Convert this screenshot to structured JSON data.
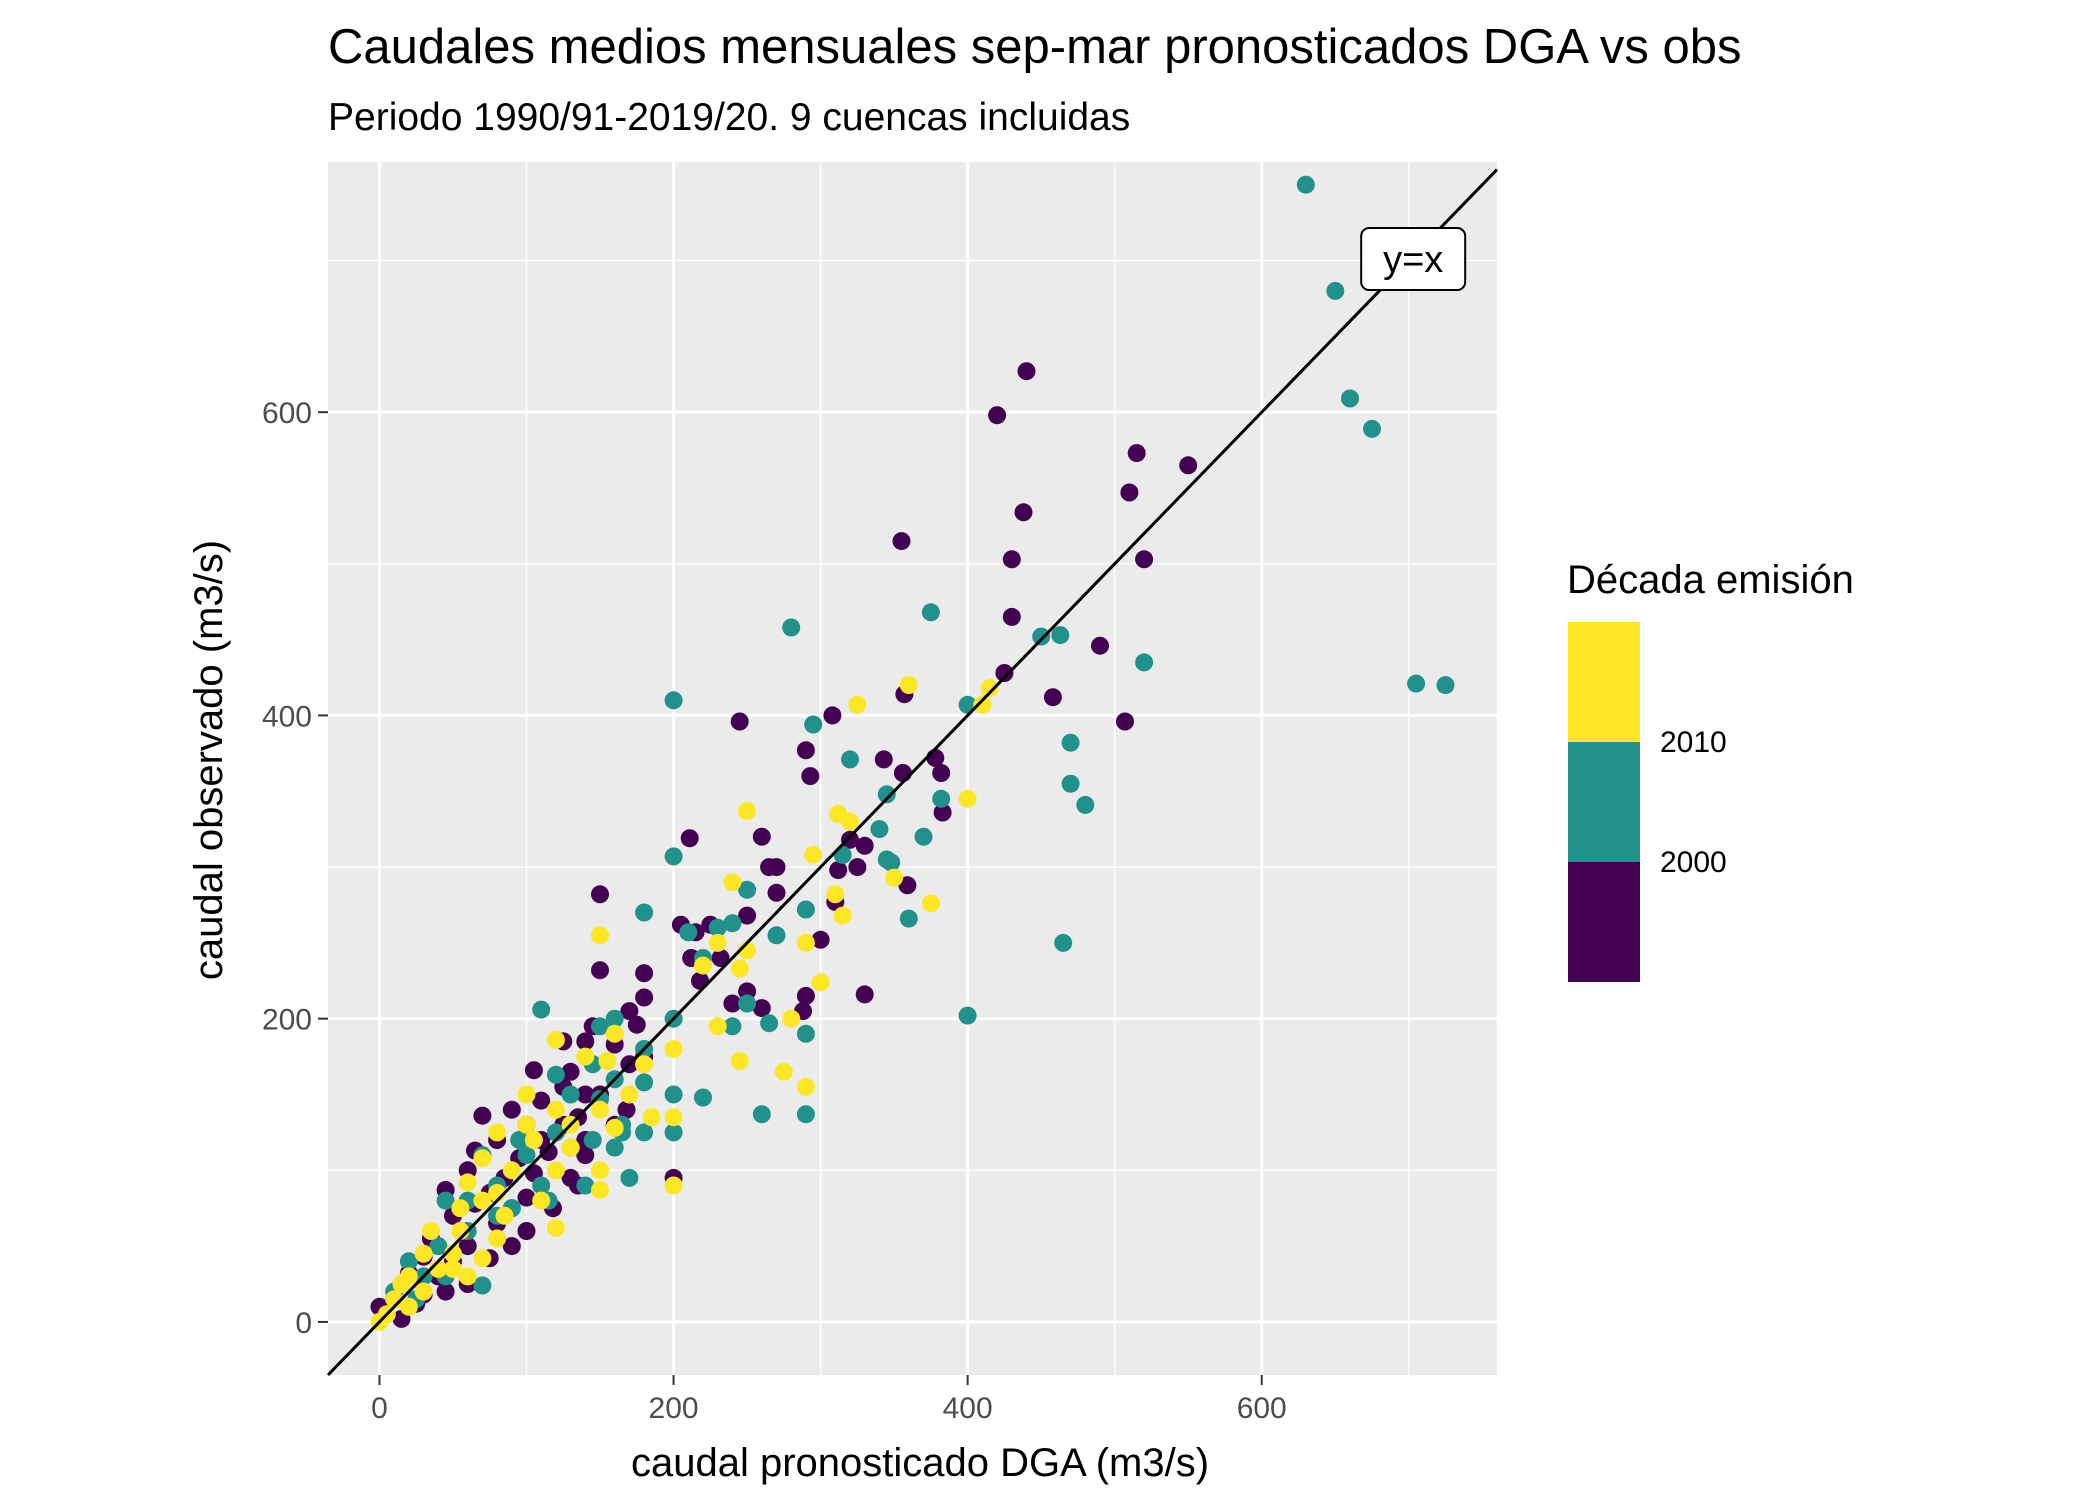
{
  "chart_data": {
    "type": "scatter",
    "title": "Caudales medios mensuales sep-mar pronosticados DGA vs obs",
    "subtitle": "Periodo 1990/91-2019/20. 9 cuencas incluidas",
    "xlabel": "caudal pronosticado DGA (m3/s)",
    "ylabel": "caudal observado (m3/s)",
    "xlim": [
      -35,
      760
    ],
    "ylim": [
      -35,
      765
    ],
    "xticks": [
      0,
      200,
      400,
      600
    ],
    "yticks": [
      0,
      200,
      400,
      600
    ],
    "grid": true,
    "reference_line": {
      "slope": 1,
      "intercept": 0,
      "label": "y=x",
      "label_at": [
        703,
        701
      ]
    },
    "legend": {
      "title": "Década emisión",
      "position": "right",
      "colorbar": [
        {
          "color": "#fde725"
        },
        {
          "color": "#21918c",
          "label": "2010"
        },
        {
          "color": "#440154",
          "label": "2000"
        }
      ]
    },
    "series": [
      {
        "color": "#440154",
        "points": [
          [
            440,
            627
          ],
          [
            420,
            598
          ],
          [
            515,
            573
          ],
          [
            550,
            565
          ],
          [
            510,
            547
          ],
          [
            438,
            534
          ],
          [
            355,
            515
          ],
          [
            520,
            503
          ],
          [
            430,
            503
          ],
          [
            430,
            465
          ],
          [
            490,
            446
          ],
          [
            425,
            428
          ],
          [
            458,
            412
          ],
          [
            507,
            396
          ],
          [
            357,
            414
          ],
          [
            245,
            396
          ],
          [
            308,
            400
          ],
          [
            290,
            377
          ],
          [
            378,
            372
          ],
          [
            343,
            371
          ],
          [
            293,
            360
          ],
          [
            382,
            362
          ],
          [
            356,
            362
          ],
          [
            383,
            336
          ],
          [
            260,
            320
          ],
          [
            211,
            319
          ],
          [
            320,
            318
          ],
          [
            330,
            314
          ],
          [
            312,
            298
          ],
          [
            265,
            300
          ],
          [
            270,
            300
          ],
          [
            325,
            300
          ],
          [
            270,
            283
          ],
          [
            359,
            288
          ],
          [
            310,
            277
          ],
          [
            150,
            282
          ],
          [
            205,
            262
          ],
          [
            225,
            262
          ],
          [
            250,
            268
          ],
          [
            215,
            257
          ],
          [
            300,
            252
          ],
          [
            212,
            240
          ],
          [
            232,
            240
          ],
          [
            218,
            225
          ],
          [
            150,
            232
          ],
          [
            180,
            230
          ],
          [
            250,
            218
          ],
          [
            290,
            215
          ],
          [
            330,
            216
          ],
          [
            288,
            205
          ],
          [
            180,
            214
          ],
          [
            170,
            205
          ],
          [
            240,
            210
          ],
          [
            260,
            207
          ],
          [
            125,
            185
          ],
          [
            140,
            185
          ],
          [
            160,
            183
          ],
          [
            175,
            196
          ],
          [
            145,
            195
          ],
          [
            105,
            166
          ],
          [
            130,
            165
          ],
          [
            170,
            170
          ],
          [
            180,
            175
          ],
          [
            125,
            155
          ],
          [
            140,
            150
          ],
          [
            110,
            146
          ],
          [
            150,
            150
          ],
          [
            168,
            140
          ],
          [
            70,
            136
          ],
          [
            90,
            140
          ],
          [
            100,
            130
          ],
          [
            125,
            130
          ],
          [
            135,
            135
          ],
          [
            80,
            120
          ],
          [
            110,
            120
          ],
          [
            140,
            120
          ],
          [
            160,
            130
          ],
          [
            65,
            113
          ],
          [
            95,
            108
          ],
          [
            115,
            112
          ],
          [
            140,
            110
          ],
          [
            60,
            100
          ],
          [
            85,
            95
          ],
          [
            105,
            98
          ],
          [
            130,
            95
          ],
          [
            75,
            85
          ],
          [
            100,
            82
          ],
          [
            135,
            90
          ],
          [
            200,
            95
          ],
          [
            45,
            87
          ],
          [
            65,
            78
          ],
          [
            90,
            75
          ],
          [
            118,
            75
          ],
          [
            50,
            70
          ],
          [
            80,
            65
          ],
          [
            100,
            60
          ],
          [
            35,
            55
          ],
          [
            60,
            50
          ],
          [
            90,
            50
          ],
          [
            30,
            43
          ],
          [
            50,
            40
          ],
          [
            75,
            42
          ],
          [
            20,
            32
          ],
          [
            40,
            30
          ],
          [
            60,
            25
          ],
          [
            10,
            15
          ],
          [
            25,
            12
          ],
          [
            45,
            20
          ],
          [
            0,
            10
          ],
          [
            15,
            2
          ],
          [
            30,
            18
          ],
          [
            5,
            5
          ]
        ]
      },
      {
        "color": "#21918c",
        "points": [
          [
            630,
            750
          ],
          [
            650,
            680
          ],
          [
            660,
            609
          ],
          [
            675,
            589
          ],
          [
            705,
            421
          ],
          [
            725,
            420
          ],
          [
            375,
            468
          ],
          [
            280,
            458
          ],
          [
            450,
            452
          ],
          [
            463,
            453
          ],
          [
            520,
            435
          ],
          [
            200,
            410
          ],
          [
            400,
            407
          ],
          [
            295,
            394
          ],
          [
            320,
            371
          ],
          [
            470,
            382
          ],
          [
            345,
            348
          ],
          [
            382,
            345
          ],
          [
            470,
            355
          ],
          [
            480,
            341
          ],
          [
            340,
            325
          ],
          [
            370,
            320
          ],
          [
            315,
            308
          ],
          [
            345,
            305
          ],
          [
            348,
            303
          ],
          [
            200,
            307
          ],
          [
            250,
            285
          ],
          [
            230,
            260
          ],
          [
            240,
            263
          ],
          [
            290,
            272
          ],
          [
            360,
            266
          ],
          [
            180,
            270
          ],
          [
            210,
            257
          ],
          [
            270,
            255
          ],
          [
            220,
            240
          ],
          [
            110,
            206
          ],
          [
            250,
            210
          ],
          [
            400,
            202
          ],
          [
            200,
            200
          ],
          [
            465,
            250
          ],
          [
            265,
            197
          ],
          [
            240,
            195
          ],
          [
            160,
            200
          ],
          [
            150,
            195
          ],
          [
            290,
            190
          ],
          [
            180,
            180
          ],
          [
            145,
            170
          ],
          [
            120,
            163
          ],
          [
            130,
            150
          ],
          [
            160,
            160
          ],
          [
            180,
            158
          ],
          [
            220,
            148
          ],
          [
            260,
            137
          ],
          [
            290,
            137
          ],
          [
            150,
            147
          ],
          [
            200,
            150
          ],
          [
            200,
            125
          ],
          [
            165,
            130
          ],
          [
            95,
            120
          ],
          [
            120,
            125
          ],
          [
            145,
            120
          ],
          [
            165,
            125
          ],
          [
            180,
            125
          ],
          [
            70,
            110
          ],
          [
            100,
            110
          ],
          [
            130,
            115
          ],
          [
            160,
            115
          ],
          [
            80,
            90
          ],
          [
            110,
            90
          ],
          [
            140,
            90
          ],
          [
            170,
            95
          ],
          [
            90,
            75
          ],
          [
            115,
            80
          ],
          [
            60,
            80
          ],
          [
            80,
            70
          ],
          [
            45,
            80
          ],
          [
            60,
            60
          ],
          [
            70,
            24
          ],
          [
            40,
            50
          ],
          [
            45,
            30
          ],
          [
            20,
            40
          ],
          [
            30,
            30
          ],
          [
            10,
            20
          ],
          [
            25,
            15
          ],
          [
            5,
            5
          ]
        ]
      },
      {
        "color": "#fde725",
        "points": [
          [
            360,
            420
          ],
          [
            415,
            418
          ],
          [
            410,
            407
          ],
          [
            325,
            407
          ],
          [
            250,
            337
          ],
          [
            312,
            335
          ],
          [
            320,
            330
          ],
          [
            400,
            345
          ],
          [
            295,
            308
          ],
          [
            350,
            293
          ],
          [
            240,
            290
          ],
          [
            310,
            282
          ],
          [
            315,
            268
          ],
          [
            375,
            276
          ],
          [
            150,
            255
          ],
          [
            230,
            250
          ],
          [
            250,
            245
          ],
          [
            290,
            250
          ],
          [
            220,
            235
          ],
          [
            245,
            233
          ],
          [
            300,
            224
          ],
          [
            280,
            200
          ],
          [
            230,
            195
          ],
          [
            245,
            172
          ],
          [
            275,
            165
          ],
          [
            290,
            155
          ],
          [
            200,
            180
          ],
          [
            120,
            186
          ],
          [
            160,
            190
          ],
          [
            180,
            170
          ],
          [
            140,
            175
          ],
          [
            155,
            172
          ],
          [
            170,
            150
          ],
          [
            100,
            150
          ],
          [
            120,
            140
          ],
          [
            150,
            140
          ],
          [
            100,
            130
          ],
          [
            130,
            130
          ],
          [
            185,
            135
          ],
          [
            200,
            135
          ],
          [
            160,
            128
          ],
          [
            80,
            125
          ],
          [
            105,
            120
          ],
          [
            130,
            115
          ],
          [
            70,
            108
          ],
          [
            90,
            100
          ],
          [
            120,
            100
          ],
          [
            150,
            100
          ],
          [
            60,
            92
          ],
          [
            80,
            85
          ],
          [
            110,
            80
          ],
          [
            150,
            87
          ],
          [
            200,
            90
          ],
          [
            55,
            75
          ],
          [
            70,
            80
          ],
          [
            85,
            70
          ],
          [
            120,
            62
          ],
          [
            35,
            60
          ],
          [
            55,
            60
          ],
          [
            80,
            55
          ],
          [
            30,
            45
          ],
          [
            50,
            45
          ],
          [
            70,
            42
          ],
          [
            20,
            30
          ],
          [
            40,
            35
          ],
          [
            60,
            30
          ],
          [
            15,
            25
          ],
          [
            30,
            20
          ],
          [
            50,
            35
          ],
          [
            10,
            15
          ],
          [
            20,
            10
          ],
          [
            5,
            5
          ],
          [
            0,
            0
          ]
        ]
      }
    ]
  }
}
